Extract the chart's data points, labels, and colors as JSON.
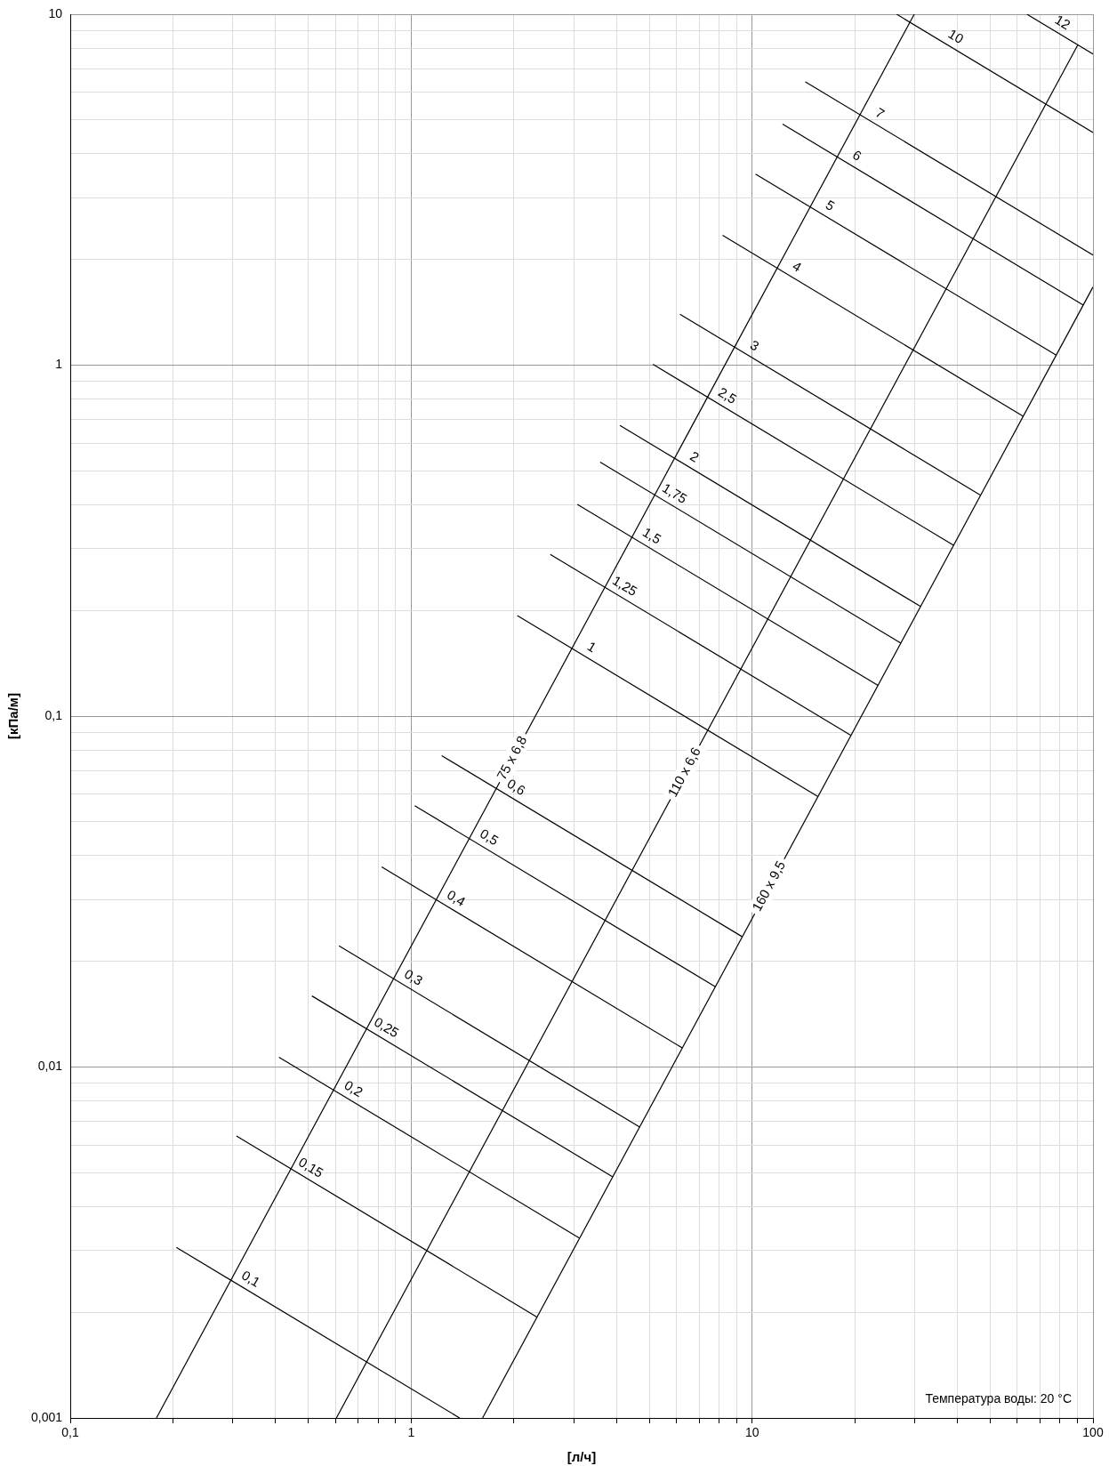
{
  "chart_data": {
    "type": "line",
    "xlabel": "[л/ч]",
    "ylabel": "[кПа/м]",
    "log": "xy",
    "grid": true,
    "legend": false,
    "marker": "none",
    "line_style": "solid",
    "xlim": [
      0.1,
      100
    ],
    "xticks": [
      {
        "value": 0.1,
        "label": "0,1"
      },
      {
        "value": 0.2,
        "label": null
      },
      {
        "value": 0.3,
        "label": null
      },
      {
        "value": 0.4,
        "label": null
      },
      {
        "value": 0.5,
        "label": null
      },
      {
        "value": 0.6,
        "label": null
      },
      {
        "value": 0.7,
        "label": null
      },
      {
        "value": 0.8,
        "label": null
      },
      {
        "value": 0.9,
        "label": null
      },
      1,
      {
        "value": 2,
        "label": null
      },
      {
        "value": 3,
        "label": null
      },
      {
        "value": 4,
        "label": null
      },
      {
        "value": 5,
        "label": null
      },
      {
        "value": 6,
        "label": null
      },
      {
        "value": 7,
        "label": null
      },
      {
        "value": 8,
        "label": null
      },
      {
        "value": 9,
        "label": null
      },
      10,
      {
        "value": 20,
        "label": null
      },
      {
        "value": 30,
        "label": null
      },
      {
        "value": 40,
        "label": null
      },
      {
        "value": 50,
        "label": null
      },
      {
        "value": 60,
        "label": null
      },
      {
        "value": 70,
        "label": null
      },
      {
        "value": 80,
        "label": null
      },
      {
        "value": 90,
        "label": null
      },
      100
    ],
    "ylim": [
      0.001,
      10
    ],
    "yticks": [
      {
        "value": 0.001,
        "label": "0,001"
      },
      {
        "value": 0.002,
        "label": null
      },
      {
        "value": 0.003,
        "label": null
      },
      {
        "value": 0.004,
        "label": null
      },
      {
        "value": 0.005,
        "label": null
      },
      {
        "value": 0.006,
        "label": null
      },
      {
        "value": 0.007,
        "label": null
      },
      {
        "value": 0.008,
        "label": null
      },
      {
        "value": 0.009,
        "label": null
      },
      {
        "value": 0.01,
        "label": "0,01"
      },
      {
        "value": 0.02,
        "label": null
      },
      {
        "value": 0.03,
        "label": null
      },
      {
        "value": 0.04,
        "label": null
      },
      {
        "value": 0.05,
        "label": null
      },
      {
        "value": 0.06,
        "label": null
      },
      {
        "value": 0.07,
        "label": null
      },
      {
        "value": 0.08,
        "label": null
      },
      {
        "value": 0.09,
        "label": null
      },
      {
        "value": 0.1,
        "label": "0,1"
      },
      {
        "value": 0.2,
        "label": null
      },
      {
        "value": 0.3,
        "label": null
      },
      {
        "value": 0.4,
        "label": null
      },
      {
        "value": 0.5,
        "label": null
      },
      {
        "value": 0.6,
        "label": null
      },
      {
        "value": 0.7,
        "label": null
      },
      {
        "value": 0.8,
        "label": null
      },
      {
        "value": 0.9,
        "label": null
      },
      1,
      {
        "value": 2,
        "label": null
      },
      {
        "value": 3,
        "label": null
      },
      {
        "value": 4,
        "label": null
      },
      {
        "value": 5,
        "label": null
      },
      {
        "value": 6,
        "label": null
      },
      {
        "value": 7,
        "label": null
      },
      {
        "value": 8,
        "label": null
      },
      {
        "value": 9,
        "label": null
      },
      10
    ],
    "annotations": [
      "Температура воды: 20 °C"
    ],
    "series": [
      {
        "name": "75 x 6,8",
        "color": "#000000",
        "x": [
          0.179,
          29.9
        ],
        "values": [
          0.001,
          10
        ]
      },
      {
        "name": "110 x 6,6",
        "color": "#000000",
        "x": [
          0.6035,
          90.4
        ],
        "values": [
          0.001,
          8.2
        ]
      },
      {
        "name": "160 x 9,5",
        "color": "#000000",
        "x": [
          1.62,
          100
        ],
        "values": [
          0.001,
          1.67
        ]
      },
      {
        "name": "0,1",
        "color": "#000000",
        "x": [
          0.2047,
          1.387
        ],
        "values": [
          0.003064,
          0.001
        ]
      },
      {
        "name": "0,15",
        "color": "#000000",
        "x": [
          0.3072,
          2.342
        ],
        "values": [
          0.006358,
          0.001938
        ]
      },
      {
        "name": "0,2",
        "color": "#000000",
        "x": [
          0.4095,
          3.121
        ],
        "values": [
          0.01067,
          0.003252
        ]
      },
      {
        "name": "0,25",
        "color": "#000000",
        "x": [
          0.5118,
          3.902
        ],
        "values": [
          0.01594,
          0.004861
        ]
      },
      {
        "name": "0,3",
        "color": "#000000",
        "x": [
          0.6141,
          4.682
        ],
        "values": [
          0.02214,
          0.006748
        ]
      },
      {
        "name": "0,4",
        "color": "#000000",
        "x": [
          0.8193,
          6.244
        ],
        "values": [
          0.03718,
          0.01133
        ]
      },
      {
        "name": "0,5",
        "color": "#000000",
        "x": [
          1.024,
          7.803
        ],
        "values": [
          0.05555,
          0.01693
        ]
      },
      {
        "name": "0,6",
        "color": "#000000",
        "x": [
          1.229,
          9.365
        ],
        "values": [
          0.07713,
          0.0235
        ]
      },
      {
        "name": "1",
        "color": "#000000",
        "x": [
          2.048,
          15.61
        ],
        "values": [
          0.1934,
          0.05895
        ]
      },
      {
        "name": "1,25",
        "color": "#000000",
        "x": [
          2.559,
          19.51
        ],
        "values": [
          0.2888,
          0.08808
        ]
      },
      {
        "name": "1,5",
        "color": "#000000",
        "x": [
          3.072,
          23.41
        ],
        "values": [
          0.4012,
          0.1223
        ]
      },
      {
        "name": "1,75",
        "color": "#000000",
        "x": [
          3.584,
          27.32
        ],
        "values": [
          0.5295,
          0.1614
        ]
      },
      {
        "name": "2",
        "color": "#000000",
        "x": [
          4.096,
          31.21
        ],
        "values": [
          0.6736,
          0.2052
        ]
      },
      {
        "name": "2,5",
        "color": "#000000",
        "x": [
          5.119,
          39.01
        ],
        "values": [
          1.006,
          0.3066
        ]
      },
      {
        "name": "3",
        "color": "#000000",
        "x": [
          6.143,
          46.82
        ],
        "values": [
          1.397,
          0.4258
        ]
      },
      {
        "name": "4",
        "color": "#000000",
        "x": [
          8.193,
          62.44
        ],
        "values": [
          2.346,
          0.7148
        ]
      },
      {
        "name": "5",
        "color": "#000000",
        "x": [
          10.24,
          78.03
        ],
        "values": [
          3.504,
          1.068
        ]
      },
      {
        "name": "6",
        "color": "#000000",
        "x": [
          12.29,
          93.65
        ],
        "values": [
          4.866,
          1.483
        ]
      },
      {
        "name": "7",
        "color": "#000000",
        "x": [
          14.33,
          100
        ],
        "values": [
          6.421,
          2.059
        ]
      },
      {
        "name": "10",
        "color": "#000000",
        "x": [
          26.55,
          100
        ],
        "values": [
          10,
          4.603
        ]
      },
      {
        "name": "12",
        "color": "#000000",
        "x": [
          64,
          100
        ],
        "values": [
          10,
          7.7
        ]
      }
    ]
  }
}
